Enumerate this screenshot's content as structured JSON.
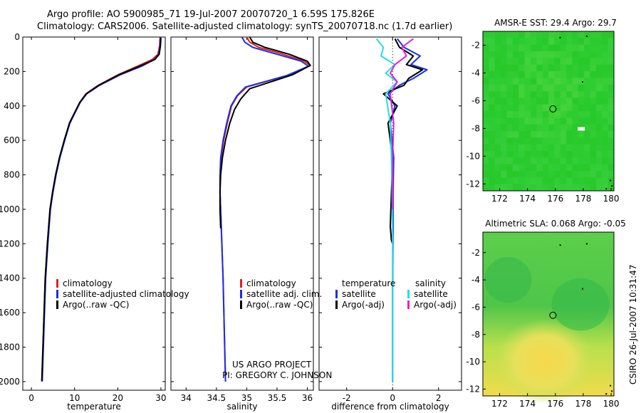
{
  "header": {
    "line1": "Argo profile: AO 5900985_71 19-Jul-2007 20070720_1 6.59S 175.826E",
    "line2": "Climatology: CARS2006. Satellite-adjusted climatology: synTS_20070718.nc (1.7d earlier)"
  },
  "credit": {
    "line1": "US ARGO PROJECT",
    "line2": "PI: GREGORY C. JOHNSON"
  },
  "side_label": "CSIRO 26-Jul-2007 10:31:47",
  "colors": {
    "climatology": "#e02020",
    "satellite": "#1a2ee6",
    "argo": "#000000",
    "sal_satellite": "#22dde0",
    "sal_argo": "#e020e0",
    "map_green": "#3cc43c",
    "map_yellow": "#f2e040"
  },
  "chart_data": [
    {
      "type": "line",
      "name": "temperature-profile",
      "xlabel": "temperature",
      "ylabel": "",
      "xlim": [
        -2,
        31
      ],
      "ylim": [
        2050,
        0
      ],
      "xticks": [
        0,
        10,
        20,
        30
      ],
      "yticks": [
        0,
        200,
        400,
        600,
        800,
        1000,
        1200,
        1400,
        1600,
        1800,
        2000
      ],
      "legend": [
        "climatology",
        "satellite-adjusted climatology",
        "Argo(..raw -QC)"
      ],
      "legend_location": "lower-left",
      "series": [
        {
          "name": "climatology",
          "color_key": "climatology",
          "x": [
            29.8,
            29.7,
            29.3,
            28.0,
            24.5,
            20.0,
            15.5,
            12.6,
            11.2,
            10.2,
            8.8,
            7.6,
            6.5,
            5.6,
            4.9,
            4.3,
            3.7,
            3.2,
            2.8,
            2.4
          ],
          "y": [
            0,
            50,
            100,
            130,
            170,
            220,
            280,
            330,
            380,
            430,
            500,
            600,
            700,
            800,
            900,
            1000,
            1200,
            1400,
            1700,
            2000
          ]
        },
        {
          "name": "satellite-adjusted climatology",
          "color_key": "satellite",
          "x": [
            29.9,
            29.8,
            29.5,
            28.5,
            25.5,
            20.5,
            15.8,
            12.8,
            11.3,
            10.3,
            8.9,
            7.7,
            6.6,
            5.7,
            5.0,
            4.4,
            3.8,
            3.3,
            2.9,
            2.5
          ],
          "y": [
            0,
            50,
            100,
            130,
            170,
            220,
            280,
            330,
            380,
            430,
            500,
            600,
            700,
            800,
            900,
            1000,
            1200,
            1400,
            1700,
            2000
          ]
        },
        {
          "name": "Argo(..raw -QC)",
          "color_key": "argo",
          "x": [
            30.0,
            29.9,
            29.6,
            28.6,
            25.0,
            20.2,
            15.6,
            12.7,
            11.2,
            10.2,
            8.8,
            7.6,
            6.5,
            5.6,
            4.9,
            4.3,
            3.7,
            3.2,
            2.8,
            2.4
          ],
          "y": [
            5,
            50,
            100,
            130,
            170,
            220,
            280,
            330,
            380,
            430,
            500,
            600,
            700,
            800,
            900,
            1000,
            1200,
            1400,
            1700,
            1995
          ]
        }
      ]
    },
    {
      "type": "line",
      "name": "salinity-profile",
      "xlabel": "salinity",
      "ylabel": "",
      "xlim": [
        33.75,
        36.1
      ],
      "ylim": [
        2050,
        0
      ],
      "xticks": [
        34,
        34.5,
        35,
        35.5,
        36
      ],
      "xticklabels": [
        "34",
        "34.5",
        "35",
        "35.5",
        "36"
      ],
      "legend": [
        "climatology",
        "satellite adj. clim.",
        "Argo(..raw -QC)"
      ],
      "legend_location": "lower-right",
      "series": [
        {
          "name": "climatology",
          "color_key": "climatology",
          "x": [
            35.0,
            35.05,
            35.2,
            35.6,
            35.95,
            36.05,
            35.7,
            35.0,
            34.85,
            34.75,
            34.68,
            34.62,
            34.58,
            34.56,
            34.56,
            34.57,
            34.59,
            34.61,
            34.63,
            34.65
          ],
          "y": [
            0,
            30,
            60,
            100,
            140,
            165,
            220,
            290,
            340,
            400,
            500,
            600,
            700,
            800,
            900,
            1000,
            1200,
            1400,
            1700,
            2000
          ]
        },
        {
          "name": "satellite adj. clim.",
          "color_key": "satellite",
          "x": [
            34.92,
            34.97,
            35.1,
            35.5,
            35.9,
            36.02,
            35.65,
            34.98,
            34.84,
            34.74,
            34.67,
            34.61,
            34.57,
            34.56,
            34.56,
            34.57,
            34.59,
            34.61,
            34.63,
            34.65
          ],
          "y": [
            0,
            30,
            60,
            100,
            140,
            170,
            225,
            290,
            340,
            400,
            500,
            600,
            700,
            800,
            900,
            1000,
            1200,
            1400,
            1700,
            2000
          ]
        },
        {
          "name": "Argo(..raw -QC)",
          "color_key": "argo",
          "x": [
            35.05,
            35.1,
            35.3,
            35.7,
            36.0,
            36.05,
            35.75,
            35.05,
            34.9,
            34.8,
            34.72,
            34.65,
            34.6,
            34.57,
            34.56,
            34.56,
            34.57
          ],
          "y": [
            0,
            30,
            60,
            100,
            140,
            165,
            220,
            300,
            360,
            420,
            500,
            600,
            700,
            800,
            900,
            1000,
            1110
          ]
        }
      ]
    },
    {
      "type": "line",
      "name": "difference-profile",
      "xlabel": "difference from climatology",
      "ylabel": "",
      "xlim": [
        -3.2,
        3.0
      ],
      "ylim": [
        2050,
        0
      ],
      "xticks": [
        -2,
        0,
        2
      ],
      "legend_temperature_title": "temperature",
      "legend_salinity_title": "salinity",
      "legend": [
        "satellite",
        "Argo(-adj)",
        "satellite",
        "Argo(-adj)"
      ],
      "legend_location": "lower-center",
      "series": [
        {
          "name": "temperature satellite",
          "color_key": "satellite",
          "x": [
            0.2,
            0.5,
            1.2,
            0.8,
            1.5,
            0.9,
            0.3,
            -0.2,
            0.1,
            -0.1,
            0.05,
            0.02,
            0.02,
            0.01,
            0.0,
            0.0,
            0.0
          ],
          "y": [
            10,
            60,
            110,
            160,
            190,
            240,
            280,
            330,
            400,
            500,
            700,
            900,
            1100,
            1300,
            1500,
            1700,
            2000
          ]
        },
        {
          "name": "temperature Argo(-adj)",
          "color_key": "argo",
          "x": [
            0.1,
            0.3,
            0.9,
            0.6,
            1.3,
            0.7,
            0.5,
            -0.4,
            0.2,
            -0.2,
            0.0,
            -0.05,
            -0.1,
            -0.05,
            0.0
          ],
          "y": [
            10,
            60,
            110,
            160,
            190,
            240,
            280,
            330,
            400,
            500,
            700,
            900,
            1100,
            1180,
            1200
          ]
        },
        {
          "name": "salinity satellite",
          "color_key": "sal_satellite",
          "x": [
            -0.7,
            -0.4,
            -0.5,
            0.1,
            -0.3,
            0.2,
            -0.3,
            -0.1,
            -0.05,
            -0.02,
            0.0,
            0.0,
            0.0
          ],
          "y": [
            10,
            60,
            110,
            160,
            210,
            260,
            330,
            500,
            700,
            900,
            1200,
            1600,
            2000
          ]
        },
        {
          "name": "salinity Argo(-adj)",
          "color_key": "sal_argo",
          "x": [
            0.9,
            0.4,
            0.6,
            0.1,
            -0.1,
            0.2,
            -0.1,
            0.05,
            0.0,
            0.0
          ],
          "y": [
            10,
            60,
            110,
            160,
            210,
            260,
            330,
            500,
            700,
            1000
          ]
        }
      ]
    },
    {
      "type": "heatmap",
      "name": "sst-map",
      "title": "AMSR-E SST: 29.4 Argo: 29.7",
      "xlim": [
        170.8,
        180.2
      ],
      "ylim": [
        -12.5,
        -1.0
      ],
      "xticks": [
        172,
        174,
        176,
        178,
        180
      ],
      "yticks": [
        -2,
        -4,
        -6,
        -8,
        -10,
        -12
      ],
      "marker": {
        "lon": 175.826,
        "lat": -6.59
      }
    },
    {
      "type": "heatmap",
      "name": "sla-map",
      "title": "Altimetric SLA: 0.068 Argo: -0.05",
      "xlim": [
        170.8,
        180.2
      ],
      "ylim": [
        -12.5,
        -0.5
      ],
      "xticks": [
        172,
        174,
        176,
        178,
        180
      ],
      "yticks": [
        -2,
        -4,
        -6,
        -8,
        -10,
        -12
      ],
      "marker": {
        "lon": 175.826,
        "lat": -6.59
      }
    }
  ]
}
